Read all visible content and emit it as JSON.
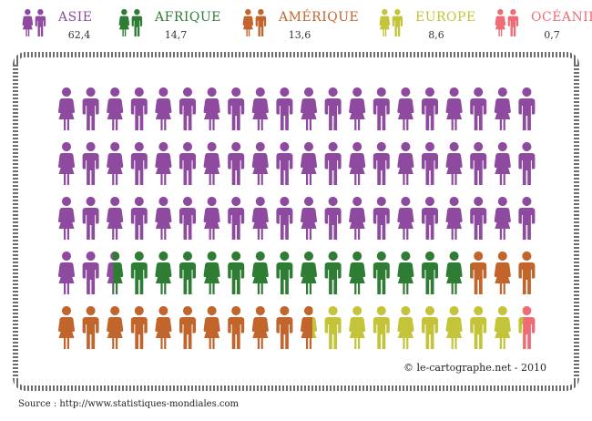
{
  "legend": [
    {
      "name": "ASIE",
      "value": "62,4",
      "color": "#8e4a9e"
    },
    {
      "name": "AFRIQUE",
      "value": "14,7",
      "color": "#2f7c34"
    },
    {
      "name": "AMÉRIQUE",
      "value": "13,6",
      "color": "#c1652d"
    },
    {
      "name": "EUROPE",
      "value": "8,6",
      "color": "#c4c43b"
    },
    {
      "name": "OCÉANIE",
      "value": "0,7",
      "color": "#ee6c78"
    }
  ],
  "credit": "© le-cartographe.net - 2010",
  "source": "Source : http://www.statistiques-mondiales.com",
  "icons": {
    "copyright": "copyright-icon",
    "person_pair": "man-woman-icon"
  },
  "chart_data": {
    "type": "pictograph",
    "total_figures": 100,
    "categories": [
      "ASIE",
      "AFRIQUE",
      "AMÉRIQUE",
      "EUROPE",
      "OCÉANIE"
    ],
    "values": [
      62.4,
      14.7,
      13.6,
      8.6,
      0.7
    ],
    "colors": [
      "#8e4a9e",
      "#2f7c34",
      "#c1652d",
      "#c4c43b",
      "#ee6c78"
    ]
  }
}
